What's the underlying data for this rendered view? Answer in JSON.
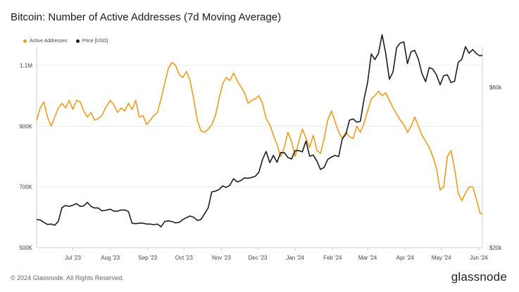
{
  "title": "Bitcoin: Number of Active Addresses (7d Moving Average)",
  "footer": "© 2024 Glassnode. All Rights Reserved.",
  "brand": "glassnode",
  "colors": {
    "active": "#f29b1d",
    "price": "#1c1c1c",
    "grid": "#ececec",
    "axis": "#cfcfcf"
  },
  "chart_data": {
    "type": "line",
    "title": "Bitcoin: Number of Active Addresses (7d Moving Average)",
    "legend_position": "top-left",
    "grid": true,
    "x_ticks": [
      "Jul '23",
      "Aug '23",
      "Sep '23",
      "Oct '23",
      "Nov '23",
      "Dec '23",
      "Jan '24",
      "Feb '24",
      "Mar '24",
      "Apr '24",
      "May '24",
      "Jun '24"
    ],
    "x_range": [
      "2023-06-01",
      "2024-06-04"
    ],
    "y_left": {
      "ticks": [
        "500K",
        "700K",
        "900K",
        "1.1M"
      ],
      "tick_values": [
        500000,
        700000,
        900000,
        1100000
      ],
      "range": [
        500000,
        1160000
      ]
    },
    "y_right": {
      "ticks": [
        "$20k",
        "$60k"
      ],
      "tick_values": [
        20000,
        60000
      ],
      "range": [
        20000,
        70000
      ]
    },
    "series": [
      {
        "name": "Active Addresses",
        "axis": "left",
        "color": "#f29b1d",
        "points": [
          [
            "2023-06-01",
            920000
          ],
          [
            "2023-06-04",
            960000
          ],
          [
            "2023-06-07",
            980000
          ],
          [
            "2023-06-10",
            930000
          ],
          [
            "2023-06-13",
            900000
          ],
          [
            "2023-06-16",
            930000
          ],
          [
            "2023-06-19",
            960000
          ],
          [
            "2023-06-22",
            975000
          ],
          [
            "2023-06-25",
            960000
          ],
          [
            "2023-06-28",
            985000
          ],
          [
            "2023-07-01",
            955000
          ],
          [
            "2023-07-04",
            985000
          ],
          [
            "2023-07-07",
            980000
          ],
          [
            "2023-07-10",
            950000
          ],
          [
            "2023-07-13",
            930000
          ],
          [
            "2023-07-16",
            945000
          ],
          [
            "2023-07-19",
            920000
          ],
          [
            "2023-07-22",
            925000
          ],
          [
            "2023-07-25",
            935000
          ],
          [
            "2023-07-28",
            960000
          ],
          [
            "2023-08-01",
            985000
          ],
          [
            "2023-08-04",
            970000
          ],
          [
            "2023-08-07",
            945000
          ],
          [
            "2023-08-10",
            960000
          ],
          [
            "2023-08-13",
            950000
          ],
          [
            "2023-08-16",
            975000
          ],
          [
            "2023-08-19",
            955000
          ],
          [
            "2023-08-22",
            985000
          ],
          [
            "2023-08-25",
            930000
          ],
          [
            "2023-08-28",
            935000
          ],
          [
            "2023-08-31",
            905000
          ],
          [
            "2023-09-03",
            920000
          ],
          [
            "2023-09-06",
            935000
          ],
          [
            "2023-09-09",
            945000
          ],
          [
            "2023-09-12",
            990000
          ],
          [
            "2023-09-15",
            1040000
          ],
          [
            "2023-09-18",
            1090000
          ],
          [
            "2023-09-21",
            1110000
          ],
          [
            "2023-09-24",
            1100000
          ],
          [
            "2023-09-27",
            1070000
          ],
          [
            "2023-09-30",
            1060000
          ],
          [
            "2023-10-03",
            1080000
          ],
          [
            "2023-10-06",
            1050000
          ],
          [
            "2023-10-09",
            990000
          ],
          [
            "2023-10-12",
            920000
          ],
          [
            "2023-10-15",
            885000
          ],
          [
            "2023-10-18",
            880000
          ],
          [
            "2023-10-21",
            890000
          ],
          [
            "2023-10-24",
            905000
          ],
          [
            "2023-10-27",
            935000
          ],
          [
            "2023-10-30",
            990000
          ],
          [
            "2023-11-02",
            1040000
          ],
          [
            "2023-11-05",
            1060000
          ],
          [
            "2023-11-08",
            1050000
          ],
          [
            "2023-11-11",
            1075000
          ],
          [
            "2023-11-14",
            1050000
          ],
          [
            "2023-11-17",
            1030000
          ],
          [
            "2023-11-20",
            1010000
          ],
          [
            "2023-11-23",
            975000
          ],
          [
            "2023-11-26",
            985000
          ],
          [
            "2023-11-29",
            990000
          ],
          [
            "2023-12-02",
            1000000
          ],
          [
            "2023-12-05",
            975000
          ],
          [
            "2023-12-08",
            925000
          ],
          [
            "2023-12-11",
            905000
          ],
          [
            "2023-12-14",
            870000
          ],
          [
            "2023-12-17",
            840000
          ],
          [
            "2023-12-20",
            800000
          ],
          [
            "2023-12-23",
            830000
          ],
          [
            "2023-12-26",
            880000
          ],
          [
            "2023-12-29",
            850000
          ],
          [
            "2024-01-01",
            800000
          ],
          [
            "2024-01-04",
            850000
          ],
          [
            "2024-01-07",
            890000
          ],
          [
            "2024-01-10",
            860000
          ],
          [
            "2024-01-13",
            830000
          ],
          [
            "2024-01-16",
            870000
          ],
          [
            "2024-01-19",
            820000
          ],
          [
            "2024-01-22",
            810000
          ],
          [
            "2024-01-25",
            860000
          ],
          [
            "2024-01-28",
            920000
          ],
          [
            "2024-01-31",
            950000
          ],
          [
            "2024-02-03",
            915000
          ],
          [
            "2024-02-06",
            880000
          ],
          [
            "2024-02-09",
            860000
          ],
          [
            "2024-02-12",
            880000
          ],
          [
            "2024-02-15",
            865000
          ],
          [
            "2024-02-18",
            860000
          ],
          [
            "2024-02-21",
            900000
          ],
          [
            "2024-02-24",
            880000
          ],
          [
            "2024-02-27",
            910000
          ],
          [
            "2024-03-01",
            950000
          ],
          [
            "2024-03-04",
            990000
          ],
          [
            "2024-03-07",
            1000000
          ],
          [
            "2024-03-10",
            1015000
          ],
          [
            "2024-03-13",
            1000000
          ],
          [
            "2024-03-16",
            1010000
          ],
          [
            "2024-03-19",
            985000
          ],
          [
            "2024-03-22",
            960000
          ],
          [
            "2024-03-25",
            940000
          ],
          [
            "2024-03-28",
            920000
          ],
          [
            "2024-03-31",
            905000
          ],
          [
            "2024-04-03",
            880000
          ],
          [
            "2024-04-06",
            900000
          ],
          [
            "2024-04-09",
            930000
          ],
          [
            "2024-04-12",
            900000
          ],
          [
            "2024-04-15",
            870000
          ],
          [
            "2024-04-18",
            850000
          ],
          [
            "2024-04-21",
            830000
          ],
          [
            "2024-04-24",
            800000
          ],
          [
            "2024-04-27",
            760000
          ],
          [
            "2024-04-30",
            690000
          ],
          [
            "2024-05-03",
            700000
          ],
          [
            "2024-05-06",
            800000
          ],
          [
            "2024-05-09",
            820000
          ],
          [
            "2024-05-12",
            760000
          ],
          [
            "2024-05-15",
            680000
          ],
          [
            "2024-05-18",
            655000
          ],
          [
            "2024-05-21",
            680000
          ],
          [
            "2024-05-24",
            700000
          ],
          [
            "2024-05-27",
            700000
          ],
          [
            "2024-05-30",
            660000
          ],
          [
            "2024-06-02",
            615000
          ],
          [
            "2024-06-04",
            610000
          ]
        ]
      },
      {
        "name": "Price [USD]",
        "axis": "right",
        "color": "#1c1c1c",
        "points": [
          [
            "2023-06-01",
            27000
          ],
          [
            "2023-06-04",
            26900
          ],
          [
            "2023-06-07",
            26300
          ],
          [
            "2023-06-10",
            25800
          ],
          [
            "2023-06-13",
            25900
          ],
          [
            "2023-06-16",
            25600
          ],
          [
            "2023-06-19",
            26600
          ],
          [
            "2023-06-22",
            30000
          ],
          [
            "2023-06-25",
            30500
          ],
          [
            "2023-06-28",
            30300
          ],
          [
            "2023-07-01",
            30600
          ],
          [
            "2023-07-04",
            31000
          ],
          [
            "2023-07-07",
            30300
          ],
          [
            "2023-07-10",
            30400
          ],
          [
            "2023-07-13",
            31300
          ],
          [
            "2023-07-16",
            30300
          ],
          [
            "2023-07-19",
            29900
          ],
          [
            "2023-07-22",
            29900
          ],
          [
            "2023-07-25",
            29200
          ],
          [
            "2023-07-28",
            29300
          ],
          [
            "2023-08-01",
            29600
          ],
          [
            "2023-08-04",
            29100
          ],
          [
            "2023-08-07",
            29100
          ],
          [
            "2023-08-10",
            29400
          ],
          [
            "2023-08-13",
            29400
          ],
          [
            "2023-08-16",
            29000
          ],
          [
            "2023-08-19",
            26100
          ],
          [
            "2023-08-22",
            26000
          ],
          [
            "2023-08-25",
            26100
          ],
          [
            "2023-08-28",
            26100
          ],
          [
            "2023-08-31",
            25900
          ],
          [
            "2023-09-03",
            25900
          ],
          [
            "2023-09-06",
            25700
          ],
          [
            "2023-09-09",
            25900
          ],
          [
            "2023-09-12",
            25200
          ],
          [
            "2023-09-15",
            26500
          ],
          [
            "2023-09-18",
            26700
          ],
          [
            "2023-09-21",
            26500
          ],
          [
            "2023-09-24",
            26200
          ],
          [
            "2023-09-27",
            26300
          ],
          [
            "2023-09-30",
            27000
          ],
          [
            "2023-10-03",
            27500
          ],
          [
            "2023-10-06",
            27900
          ],
          [
            "2023-10-09",
            27600
          ],
          [
            "2023-10-12",
            26800
          ],
          [
            "2023-10-15",
            27000
          ],
          [
            "2023-10-18",
            28400
          ],
          [
            "2023-10-21",
            29900
          ],
          [
            "2023-10-24",
            33900
          ],
          [
            "2023-10-27",
            34100
          ],
          [
            "2023-10-30",
            34500
          ],
          [
            "2023-11-02",
            35400
          ],
          [
            "2023-11-05",
            35000
          ],
          [
            "2023-11-08",
            35600
          ],
          [
            "2023-11-11",
            37200
          ],
          [
            "2023-11-14",
            36400
          ],
          [
            "2023-11-17",
            36700
          ],
          [
            "2023-11-20",
            37400
          ],
          [
            "2023-11-23",
            37300
          ],
          [
            "2023-11-26",
            37500
          ],
          [
            "2023-11-29",
            37800
          ],
          [
            "2023-12-02",
            38800
          ],
          [
            "2023-12-05",
            42000
          ],
          [
            "2023-12-08",
            44000
          ],
          [
            "2023-12-11",
            41200
          ],
          [
            "2023-12-14",
            43000
          ],
          [
            "2023-12-17",
            41300
          ],
          [
            "2023-12-20",
            43700
          ],
          [
            "2023-12-23",
            43700
          ],
          [
            "2023-12-26",
            42500
          ],
          [
            "2023-12-29",
            42100
          ],
          [
            "2024-01-01",
            44200
          ],
          [
            "2024-01-04",
            44200
          ],
          [
            "2024-01-07",
            43900
          ],
          [
            "2024-01-10",
            46600
          ],
          [
            "2024-01-13",
            42800
          ],
          [
            "2024-01-16",
            43100
          ],
          [
            "2024-01-19",
            41600
          ],
          [
            "2024-01-22",
            39500
          ],
          [
            "2024-01-25",
            40000
          ],
          [
            "2024-01-28",
            42000
          ],
          [
            "2024-01-31",
            42600
          ],
          [
            "2024-02-03",
            43000
          ],
          [
            "2024-02-06",
            42700
          ],
          [
            "2024-02-09",
            47100
          ],
          [
            "2024-02-12",
            48300
          ],
          [
            "2024-02-15",
            51800
          ],
          [
            "2024-02-18",
            52100
          ],
          [
            "2024-02-21",
            51300
          ],
          [
            "2024-02-24",
            51500
          ],
          [
            "2024-02-27",
            57000
          ],
          [
            "2024-03-01",
            61200
          ],
          [
            "2024-03-04",
            68300
          ],
          [
            "2024-03-07",
            66900
          ],
          [
            "2024-03-10",
            68500
          ],
          [
            "2024-03-13",
            73100
          ],
          [
            "2024-03-16",
            68400
          ],
          [
            "2024-03-19",
            62000
          ],
          [
            "2024-03-22",
            63800
          ],
          [
            "2024-03-25",
            69900
          ],
          [
            "2024-03-28",
            71000
          ],
          [
            "2024-03-31",
            71300
          ],
          [
            "2024-04-03",
            65900
          ],
          [
            "2024-04-06",
            68900
          ],
          [
            "2024-04-09",
            69200
          ],
          [
            "2024-04-12",
            67000
          ],
          [
            "2024-04-15",
            63400
          ],
          [
            "2024-04-18",
            61400
          ],
          [
            "2024-04-21",
            64900
          ],
          [
            "2024-04-24",
            64500
          ],
          [
            "2024-04-27",
            63100
          ],
          [
            "2024-04-30",
            60600
          ],
          [
            "2024-05-03",
            62900
          ],
          [
            "2024-05-06",
            63100
          ],
          [
            "2024-05-09",
            61200
          ],
          [
            "2024-05-12",
            61500
          ],
          [
            "2024-05-15",
            66200
          ],
          [
            "2024-05-18",
            67000
          ],
          [
            "2024-05-21",
            70100
          ],
          [
            "2024-05-24",
            68500
          ],
          [
            "2024-05-27",
            69400
          ],
          [
            "2024-05-30",
            68400
          ],
          [
            "2024-06-02",
            67800
          ],
          [
            "2024-06-04",
            68000
          ]
        ]
      }
    ]
  }
}
